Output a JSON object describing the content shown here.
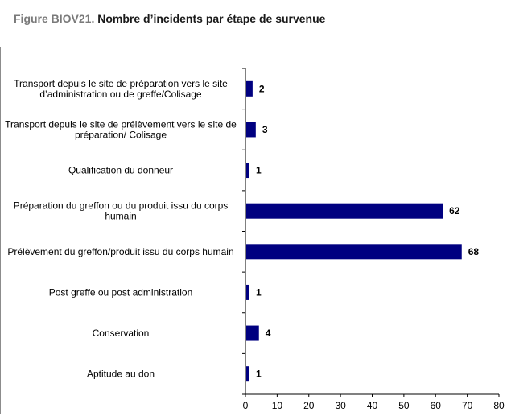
{
  "figure": {
    "number": "Figure BIOV21.",
    "title": "Nombre d’incidents par étape de survenue"
  },
  "chart_data": {
    "type": "bar",
    "orientation": "horizontal",
    "categories": [
      [
        "Transport depuis le site de préparation vers le site",
        "d’administration ou de greffe/Colisage"
      ],
      [
        "Transport depuis le site de prélèvement  vers le site de",
        "préparation/ Colisage"
      ],
      [
        "Qualification du donneur"
      ],
      [
        "Préparation du greffon ou du produit issu du corps",
        "humain"
      ],
      [
        "Prélèvement du greffon/produit issu du corps humain"
      ],
      [
        "Post greffe ou post administration"
      ],
      [
        "Conservation"
      ],
      [
        "Aptitude au don"
      ]
    ],
    "values": [
      2,
      3,
      1,
      62,
      68,
      1,
      4,
      1
    ],
    "xlim": [
      0,
      80
    ],
    "xticks": [
      0,
      10,
      20,
      30,
      40,
      50,
      60,
      70,
      80
    ],
    "data_labels": true,
    "grid": false,
    "legend": "none",
    "bar_color": "#000080"
  }
}
